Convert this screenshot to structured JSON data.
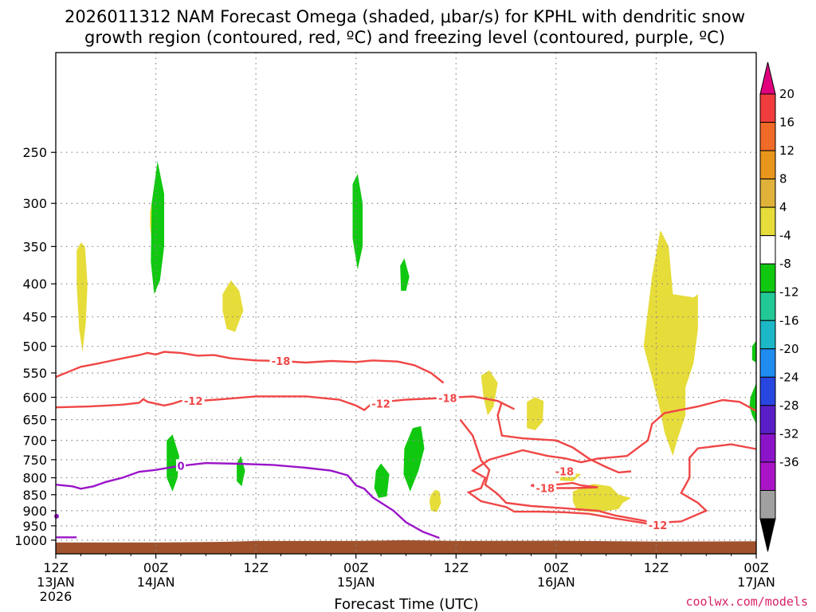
{
  "chart_data": {
    "type": "heatmap",
    "title_line1": "2026011312 NAM Forecast Omega (shaded, μbar/s) for KPHL with dendritic snow",
    "title_line2": "growth region (contoured, red, ºC) and freezing level (contoured, purple, ºC)",
    "xlabel": "Forecast Time (UTC)",
    "credit": "coolwx.com/models",
    "xlim_hours": [
      0,
      84
    ],
    "ylim_hpa": [
      1050,
      175
    ],
    "x_ticks": [
      {
        "hour": 0,
        "l1": "12Z",
        "l2": "13JAN",
        "l3": "2026"
      },
      {
        "hour": 12,
        "l1": "00Z",
        "l2": "14JAN",
        "l3": ""
      },
      {
        "hour": 24,
        "l1": "12Z",
        "l2": "",
        "l3": ""
      },
      {
        "hour": 36,
        "l1": "00Z",
        "l2": "15JAN",
        "l3": ""
      },
      {
        "hour": 48,
        "l1": "12Z",
        "l2": "",
        "l3": ""
      },
      {
        "hour": 60,
        "l1": "00Z",
        "l2": "16JAN",
        "l3": ""
      },
      {
        "hour": 72,
        "l1": "12Z",
        "l2": "",
        "l3": ""
      },
      {
        "hour": 84,
        "l1": "00Z",
        "l2": "17JAN",
        "l3": ""
      }
    ],
    "y_ticks": [
      "250",
      "300",
      "350",
      "400",
      "450",
      "500",
      "550",
      "600",
      "650",
      "700",
      "750",
      "800",
      "850",
      "900",
      "950",
      "1000"
    ],
    "colorbar": {
      "labels": [
        "20",
        "16",
        "12",
        "8",
        "4",
        "-4",
        "-8",
        "-12",
        "-16",
        "-20",
        "-24",
        "-28",
        "-32",
        "-36"
      ],
      "colors": [
        "#e0007e",
        "#f03c3c",
        "#f06a28",
        "#e8951c",
        "#e0b23a",
        "#e6dc3a",
        "#ffffff",
        "#11c811",
        "#22c896",
        "#1cb8c8",
        "#208cf0",
        "#2846e0",
        "#5a1ec8",
        "#8c14c8",
        "#aa14c8",
        "#a0a0a0",
        "#000000"
      ]
    },
    "contours": {
      "minus18_label": "-18",
      "minus12_label": "-12",
      "freezing_label": "0",
      "dgz_color": "#f04646",
      "freezing_color": "#9a14c8",
      "ground_color": "#a0522d",
      "minus18_upper": [
        [
          0,
          558
        ],
        [
          1.5,
          548
        ],
        [
          3,
          538
        ],
        [
          5,
          532
        ],
        [
          8,
          522
        ],
        [
          10,
          516
        ],
        [
          11,
          512
        ],
        [
          12,
          515
        ],
        [
          13,
          510
        ],
        [
          15,
          512
        ],
        [
          17,
          517
        ],
        [
          19,
          516
        ],
        [
          21,
          522
        ],
        [
          24,
          526
        ],
        [
          27,
          527
        ],
        [
          30,
          530
        ],
        [
          33,
          527
        ],
        [
          36,
          529
        ],
        [
          38,
          526
        ],
        [
          41,
          528
        ],
        [
          43,
          535
        ],
        [
          45,
          550
        ],
        [
          46.5,
          570
        ]
      ],
      "minus12_upper": [
        [
          0,
          622
        ],
        [
          4,
          620
        ],
        [
          8,
          616
        ],
        [
          10,
          612
        ],
        [
          10.5,
          604
        ],
        [
          11,
          610
        ],
        [
          12,
          614
        ],
        [
          13,
          618
        ],
        [
          14,
          614
        ],
        [
          15,
          608
        ],
        [
          17,
          608
        ],
        [
          20,
          604
        ],
        [
          24,
          598
        ],
        [
          30,
          598
        ],
        [
          34,
          605
        ],
        [
          36,
          618
        ],
        [
          37,
          628
        ],
        [
          38,
          612
        ],
        [
          42,
          605
        ],
        [
          46,
          602
        ],
        [
          50,
          598
        ],
        [
          53,
          608
        ],
        [
          55,
          626
        ]
      ],
      "minus18_middle": [
        [
          48.5,
          650
        ],
        [
          50,
          688
        ],
        [
          51,
          752
        ],
        [
          52,
          778
        ],
        [
          51.5,
          820
        ],
        [
          53,
          848
        ],
        [
          54,
          875
        ],
        [
          57,
          885
        ],
        [
          61,
          892
        ],
        [
          65,
          900
        ],
        [
          67,
          915
        ],
        [
          70,
          930
        ],
        [
          72,
          940
        ],
        [
          75,
          935
        ],
        [
          78,
          900
        ],
        [
          77,
          875
        ],
        [
          75,
          845
        ],
        [
          76,
          800
        ],
        [
          76,
          745
        ],
        [
          77,
          720
        ],
        [
          81,
          710
        ],
        [
          84,
          722
        ]
      ],
      "minus18_lower": [
        [
          53.5,
          610
        ],
        [
          53,
          640
        ],
        [
          53.5,
          688
        ],
        [
          56,
          695
        ],
        [
          60,
          700
        ],
        [
          62,
          718
        ],
        [
          64,
          748
        ],
        [
          66,
          770
        ],
        [
          67.5,
          785
        ],
        [
          69,
          782
        ]
      ],
      "minus12_lower": [
        [
          72,
          948
        ],
        [
          70,
          938
        ],
        [
          67,
          925
        ],
        [
          64,
          910
        ],
        [
          61,
          905
        ],
        [
          58,
          903
        ],
        [
          55,
          903
        ],
        [
          54,
          888
        ],
        [
          51,
          870
        ],
        [
          49.5,
          843
        ],
        [
          51,
          830
        ],
        [
          51.5,
          800
        ],
        [
          50,
          780
        ],
        [
          52,
          750
        ],
        [
          56,
          725
        ],
        [
          59,
          740
        ],
        [
          61,
          746
        ],
        [
          63,
          757
        ],
        [
          65,
          747
        ],
        [
          68.5,
          740
        ],
        [
          71,
          700
        ],
        [
          71.5,
          660
        ],
        [
          73,
          635
        ],
        [
          77,
          620
        ],
        [
          80,
          606
        ],
        [
          82,
          610
        ],
        [
          84,
          630
        ]
      ],
      "minus12_loop": [
        [
          57,
          822
        ],
        [
          58.5,
          815
        ],
        [
          60,
          820
        ],
        [
          62,
          815
        ],
        [
          63,
          822
        ],
        [
          65,
          828
        ],
        [
          62,
          830
        ],
        [
          58,
          830
        ],
        [
          57,
          822
        ]
      ],
      "freezing": [
        [
          0,
          820
        ],
        [
          2,
          825
        ],
        [
          3,
          832
        ],
        [
          4.5,
          825
        ],
        [
          6,
          812
        ],
        [
          8,
          800
        ],
        [
          10,
          783
        ],
        [
          12,
          778
        ],
        [
          14,
          770
        ],
        [
          16,
          764
        ],
        [
          18,
          759
        ],
        [
          22,
          761
        ],
        [
          26,
          764
        ],
        [
          30,
          772
        ],
        [
          33,
          780
        ],
        [
          35,
          793
        ],
        [
          36,
          822
        ],
        [
          37,
          832
        ],
        [
          38,
          858
        ],
        [
          40.5,
          900
        ],
        [
          42,
          938
        ],
        [
          44,
          970
        ],
        [
          46,
          992
        ]
      ],
      "ground": [
        [
          0,
          1008
        ],
        [
          12,
          1008
        ],
        [
          20,
          1006
        ],
        [
          24,
          1003
        ],
        [
          36,
          1003
        ],
        [
          42,
          1000
        ],
        [
          48,
          1003
        ],
        [
          60,
          1002
        ],
        [
          72,
          1005
        ],
        [
          84,
          1004
        ]
      ],
      "omega_positive": [
        [
          [
            2.5,
            355
          ],
          [
            3,
            345
          ],
          [
            3.5,
            350
          ],
          [
            3.8,
            400
          ],
          [
            3.6,
            460
          ],
          [
            3.2,
            510
          ],
          [
            2.8,
            470
          ],
          [
            2.5,
            400
          ]
        ],
        [
          [
            11.3,
            310
          ],
          [
            11.5,
            300
          ],
          [
            11.8,
            315
          ],
          [
            11.7,
            335
          ],
          [
            11.5,
            342
          ],
          [
            11.3,
            325
          ]
        ],
        [
          [
            20,
            415
          ],
          [
            21,
            395
          ],
          [
            22,
            410
          ],
          [
            22.5,
            440
          ],
          [
            21.5,
            475
          ],
          [
            20.5,
            470
          ],
          [
            20,
            440
          ]
        ],
        [
          [
            45,
            850
          ],
          [
            45.5,
            835
          ],
          [
            46,
            840
          ],
          [
            46.2,
            875
          ],
          [
            45.7,
            905
          ],
          [
            45,
            900
          ],
          [
            44.8,
            870
          ]
        ],
        [
          [
            51,
            555
          ],
          [
            52,
            545
          ],
          [
            53,
            570
          ],
          [
            52.5,
            620
          ],
          [
            51.8,
            640
          ],
          [
            51.3,
            600
          ]
        ],
        [
          [
            56.5,
            610
          ],
          [
            57.5,
            600
          ],
          [
            58.5,
            608
          ],
          [
            58.4,
            655
          ],
          [
            57.5,
            675
          ],
          [
            56.5,
            670
          ]
        ],
        [
          [
            60.5,
            795
          ],
          [
            61.5,
            785
          ],
          [
            63,
            790
          ],
          [
            62,
            810
          ],
          [
            60.5,
            808
          ]
        ],
        [
          [
            62,
            840
          ],
          [
            63.5,
            825
          ],
          [
            64.5,
            818
          ],
          [
            66.5,
            825
          ],
          [
            67.5,
            850
          ],
          [
            69,
            860
          ],
          [
            68,
            875
          ],
          [
            67.5,
            895
          ],
          [
            65,
            905
          ],
          [
            62.5,
            900
          ],
          [
            62,
            870
          ]
        ],
        [
          [
            71.5,
            390
          ],
          [
            72.5,
            330
          ],
          [
            73.5,
            350
          ],
          [
            74,
            415
          ],
          [
            76.5,
            420
          ],
          [
            77,
            415
          ],
          [
            77,
            470
          ],
          [
            76.5,
            530
          ],
          [
            75.5,
            580
          ],
          [
            75.5,
            640
          ],
          [
            74.5,
            700
          ],
          [
            74,
            740
          ],
          [
            73,
            680
          ],
          [
            72.5,
            630
          ],
          [
            71.5,
            560
          ],
          [
            70.5,
            500
          ],
          [
            71,
            440
          ]
        ]
      ],
      "omega_negative": [
        [
          [
            11.5,
            300
          ],
          [
            12.2,
            258
          ],
          [
            13,
            290
          ],
          [
            13,
            350
          ],
          [
            12.5,
            395
          ],
          [
            11.8,
            415
          ],
          [
            11.4,
            370
          ]
        ],
        [
          [
            35.6,
            280
          ],
          [
            36.2,
            270
          ],
          [
            36.8,
            300
          ],
          [
            36.8,
            350
          ],
          [
            36.2,
            380
          ],
          [
            35.6,
            340
          ]
        ],
        [
          [
            41.3,
            375
          ],
          [
            41.8,
            365
          ],
          [
            42.4,
            390
          ],
          [
            42,
            410
          ],
          [
            41.4,
            410
          ]
        ],
        [
          [
            13.3,
            700
          ],
          [
            14,
            685
          ],
          [
            14.8,
            740
          ],
          [
            14.6,
            800
          ],
          [
            14,
            840
          ],
          [
            13.3,
            800
          ]
        ],
        [
          [
            21.7,
            760
          ],
          [
            22.2,
            740
          ],
          [
            22.7,
            780
          ],
          [
            22.3,
            825
          ],
          [
            21.7,
            810
          ]
        ],
        [
          [
            38.4,
            780
          ],
          [
            39,
            760
          ],
          [
            40,
            790
          ],
          [
            39.7,
            855
          ],
          [
            38.7,
            860
          ],
          [
            38.2,
            830
          ]
        ],
        [
          [
            41.8,
            720
          ],
          [
            42.8,
            670
          ],
          [
            43.8,
            665
          ],
          [
            44.2,
            720
          ],
          [
            43.5,
            780
          ],
          [
            42.5,
            840
          ],
          [
            41.7,
            790
          ]
        ],
        [
          [
            83.5,
            500
          ],
          [
            84,
            490
          ],
          [
            84,
            530
          ],
          [
            83.5,
            525
          ]
        ],
        [
          [
            83.3,
            600
          ],
          [
            84,
            570
          ],
          [
            84,
            660
          ],
          [
            83.5,
            640
          ],
          [
            83.2,
            620
          ]
        ]
      ]
    }
  }
}
